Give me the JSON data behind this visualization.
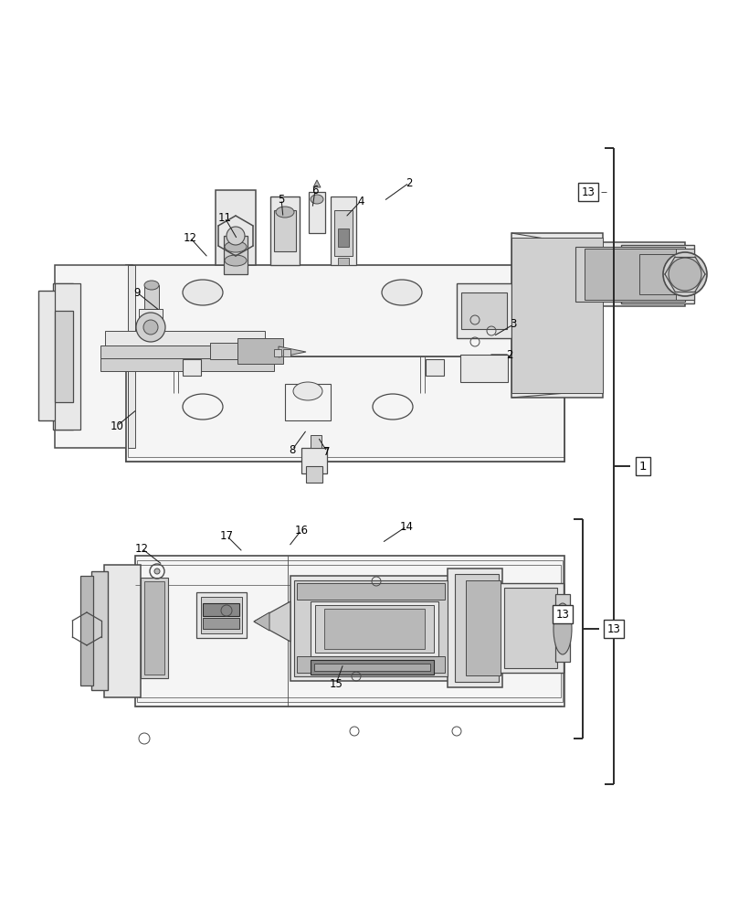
{
  "bg_color": "#ffffff",
  "lc": "#4a4a4a",
  "dc": "#2a2a2a",
  "fc_body": "#f5f5f5",
  "fc_part": "#e8e8e8",
  "fc_dark": "#d0d0d0",
  "fc_darker": "#b8b8b8",
  "fc_shadow": "#c0c0c0",
  "diagram1_labels": [
    [
      "2",
      420,
      220,
      448,
      200
    ],
    [
      "2",
      535,
      388,
      558,
      388
    ],
    [
      "3",
      540,
      368,
      562,
      355
    ],
    [
      "4",
      378,
      238,
      395,
      220
    ],
    [
      "5",
      310,
      238,
      308,
      218
    ],
    [
      "6",
      342,
      228,
      345,
      208
    ],
    [
      "7",
      348,
      478,
      358,
      494
    ],
    [
      "8",
      336,
      470,
      320,
      492
    ],
    [
      "9",
      175,
      340,
      150,
      320
    ],
    [
      "10",
      150,
      448,
      128,
      466
    ],
    [
      "11",
      260,
      262,
      246,
      238
    ],
    [
      "12",
      228,
      282,
      208,
      260
    ],
    [
      "13",
      644,
      210,
      644,
      210
    ]
  ],
  "diagram2_labels": [
    [
      "12",
      178,
      618,
      155,
      600
    ],
    [
      "14",
      418,
      594,
      445,
      576
    ],
    [
      "15",
      376,
      726,
      368,
      748
    ],
    [
      "16",
      316,
      598,
      330,
      580
    ],
    [
      "17",
      266,
      604,
      248,
      586
    ],
    [
      "13",
      616,
      672,
      616,
      672
    ]
  ]
}
